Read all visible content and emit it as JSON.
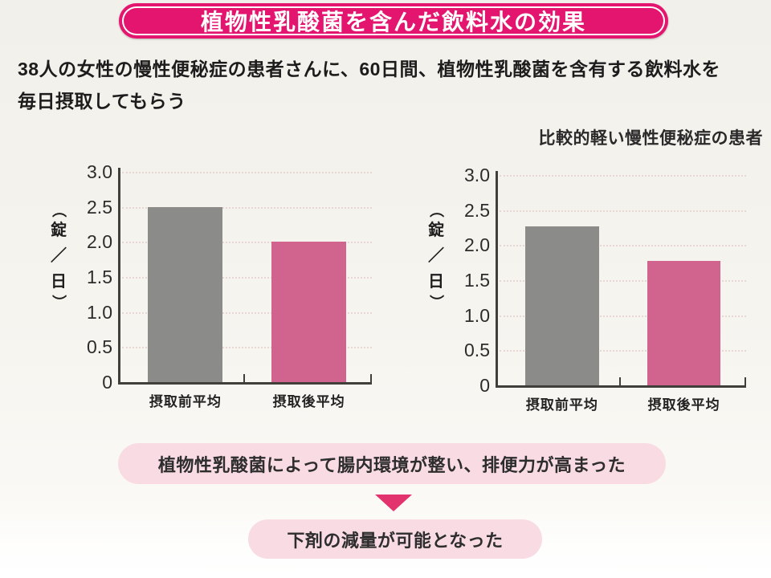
{
  "banner": {
    "title": "植物性乳酸菌を含んだ飲料水の効果"
  },
  "description": "38人の女性の慢性便秘症の患者さんに、60日間、植物性乳酸菌を含有する飲料水を\n毎日摂取してもらう",
  "chart_data": [
    {
      "type": "bar",
      "title": "",
      "categories": [
        "摂取前平均",
        "摂取後平均"
      ],
      "values": [
        2.5,
        2.0
      ],
      "bar_colors": [
        "#8b8b89",
        "#d0648f"
      ],
      "ylabel": "（錠／日）",
      "ylim": [
        0,
        3.0
      ],
      "yticks": [
        "0",
        "0.5",
        "1.0",
        "1.5",
        "2.0",
        "2.5",
        "3.0"
      ],
      "grid": "dotted-horizontal",
      "legend": "none"
    },
    {
      "type": "bar",
      "title": "比較的軽い慢性便秘症の患者",
      "categories": [
        "摂取前平均",
        "摂取後平均"
      ],
      "values": [
        2.27,
        1.78
      ],
      "bar_colors": [
        "#8b8b89",
        "#d0648f"
      ],
      "ylabel": "（錠／日）",
      "ylim": [
        0,
        3.0
      ],
      "yticks": [
        "0",
        "0.5",
        "1.0",
        "1.5",
        "2.0",
        "2.5",
        "3.0"
      ],
      "grid": "dotted-horizontal",
      "legend": "none"
    }
  ],
  "callouts": {
    "box1": "植物性乳酸菌によって腸内環境が整い、排便力が高まった",
    "arrow": "down-triangle",
    "box2": "下剤の減量が可能となった"
  },
  "colors": {
    "banner_bg": "#e4156f",
    "banner_text": "#ffffff",
    "bar_before": "#8b8b89",
    "bar_after": "#d0648f",
    "callout_bg": "#f9dce3",
    "arrow": "#e2336f",
    "axis": "#413f3a",
    "gridline": "#e7d6d2",
    "page_bg": "#f5f3ee"
  }
}
